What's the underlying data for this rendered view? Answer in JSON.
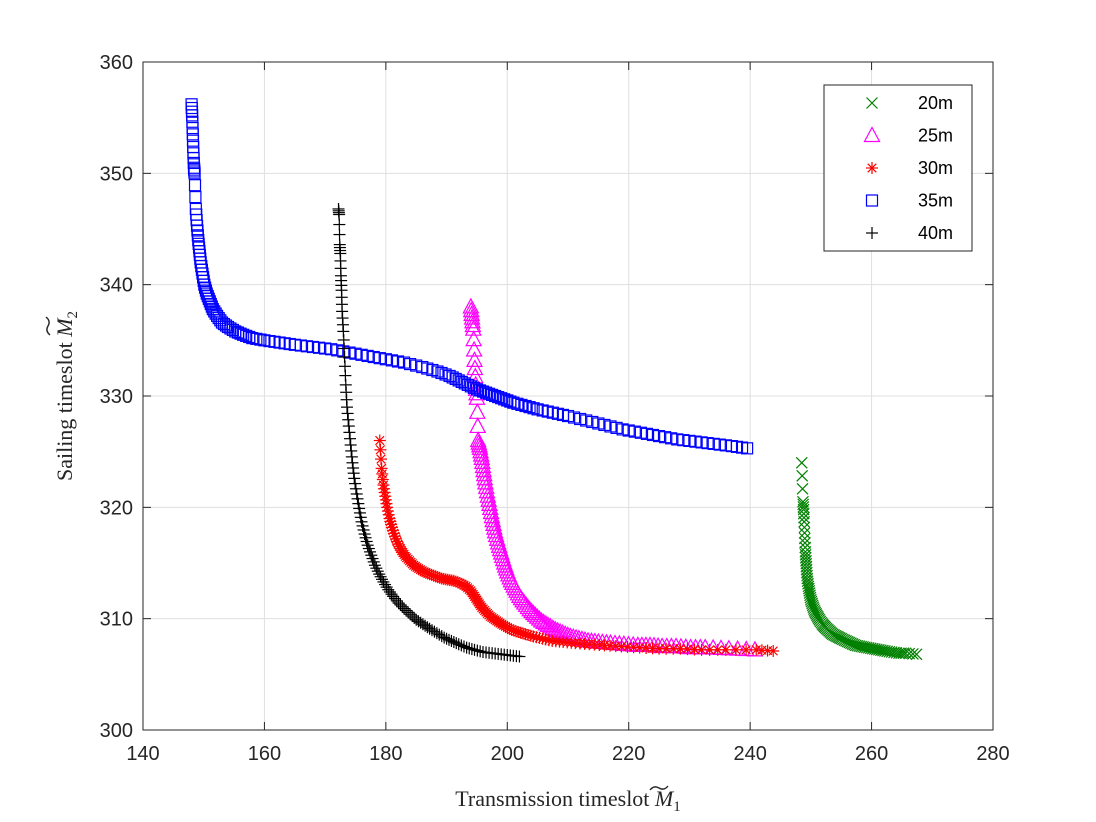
{
  "chart_data": {
    "type": "scatter",
    "xlabel": "Transmission timeslot",
    "xlabel_symbol": "M",
    "xlabel_sub": "1",
    "ylabel": "Sailing timeslot",
    "ylabel_symbol": "M",
    "ylabel_sub": "2",
    "xlim": [
      140,
      280
    ],
    "ylim": [
      300,
      360
    ],
    "xticks": [
      140,
      160,
      180,
      200,
      220,
      240,
      260,
      280
    ],
    "yticks": [
      300,
      310,
      320,
      330,
      340,
      350,
      360
    ],
    "grid": true,
    "legend_position": "top-right",
    "series": [
      {
        "name": "20m",
        "marker": "x",
        "color": "#008000",
        "x": [
          248.5,
          248.7,
          248.8,
          248.9,
          249.0,
          249.1,
          249.2,
          249.3,
          249.4,
          249.6,
          249.8,
          250.0,
          250.3,
          250.6,
          251.0,
          251.4,
          251.9,
          252.4,
          253.0,
          253.6,
          254.3,
          255.0,
          255.8,
          256.6,
          257.4,
          258.3,
          259.2,
          260.2,
          261.2,
          262.2,
          263.3,
          264.5,
          265.6,
          267.4
        ],
        "y": [
          324.0,
          320.5,
          319.8,
          318.7,
          317.2,
          316.0,
          315.2,
          314.4,
          313.6,
          312.9,
          312.3,
          311.7,
          311.2,
          310.7,
          310.3,
          309.9,
          309.5,
          309.2,
          308.9,
          308.6,
          308.4,
          308.2,
          308.0,
          307.8,
          307.6,
          307.5,
          307.4,
          307.3,
          307.2,
          307.1,
          307.0,
          306.9,
          306.9,
          306.8
        ]
      },
      {
        "name": "25m",
        "marker": "triangle",
        "color": "#ff00ff",
        "x": [
          194.0,
          194.2,
          194.4,
          194.6,
          194.8,
          195.0,
          195.2,
          195.5,
          195.8,
          196.1,
          196.4,
          196.8,
          197.2,
          197.6,
          198.0,
          198.5,
          199.0,
          199.5,
          200.0,
          200.6,
          201.3,
          202.0,
          202.8,
          203.7,
          204.6,
          205.6,
          206.7,
          207.9,
          209.1,
          210.4,
          211.8,
          213.3,
          215.0,
          217.0,
          219.2,
          221.5,
          223.5,
          225.5,
          227.8,
          230.2,
          232.6,
          236.5,
          240.8
        ],
        "y": [
          338.0,
          337.0,
          336.0,
          333.2,
          331.0,
          329.8,
          326.0,
          325.3,
          324.4,
          323.3,
          322.2,
          321.0,
          319.9,
          318.8,
          317.8,
          316.8,
          315.9,
          315.0,
          314.2,
          313.4,
          312.7,
          312.0,
          311.4,
          310.8,
          310.3,
          309.8,
          309.4,
          309.0,
          308.7,
          308.4,
          308.2,
          308.0,
          307.9,
          307.8,
          307.7,
          307.6,
          307.6,
          307.5,
          307.5,
          307.4,
          307.4,
          307.3,
          307.2
        ]
      },
      {
        "name": "30m",
        "marker": "asterisk",
        "color": "#ff0000",
        "x": [
          179.0,
          179.3,
          179.6,
          179.9,
          180.2,
          180.6,
          181.0,
          181.5,
          182.0,
          182.6,
          183.2,
          183.9,
          184.6,
          185.4,
          186.3,
          187.2,
          188.2,
          189.2,
          190.2,
          191.2,
          192.2,
          193.2,
          194.0,
          194.6,
          195.2,
          195.8,
          196.5,
          197.2,
          198.0,
          198.8,
          199.7,
          200.7,
          201.8,
          203.0,
          204.3,
          205.8,
          207.4,
          209.2,
          211.2,
          213.5,
          216.0,
          218.8,
          221.8,
          225.0,
          228.5,
          232.0,
          236.0,
          241.0,
          243.8
        ],
        "y": [
          326.0,
          323.5,
          322.0,
          321.0,
          320.0,
          319.0,
          318.2,
          317.4,
          316.7,
          316.1,
          315.6,
          315.2,
          314.8,
          314.5,
          314.2,
          314.0,
          313.8,
          313.6,
          313.5,
          313.4,
          313.2,
          312.9,
          312.5,
          312.0,
          311.5,
          311.0,
          310.6,
          310.2,
          309.9,
          309.6,
          309.3,
          309.0,
          308.8,
          308.6,
          308.4,
          308.2,
          308.0,
          307.9,
          307.8,
          307.7,
          307.6,
          307.5,
          307.4,
          307.3,
          307.3,
          307.2,
          307.2,
          307.2,
          307.1
        ]
      },
      {
        "name": "35m",
        "marker": "square",
        "color": "#0000ff",
        "x": [
          148.0,
          148.1,
          148.2,
          148.3,
          148.4,
          148.5,
          148.7,
          148.9,
          149.1,
          149.3,
          149.5,
          149.8,
          150.1,
          150.5,
          151.0,
          151.5,
          152.2,
          153.0,
          154.0,
          155.2,
          156.5,
          158.0,
          160.0,
          162.5,
          165.0,
          168.0,
          171.0,
          174.0,
          177.0,
          180.0,
          183.0,
          186.0,
          188.5,
          190.5,
          192.0,
          193.5,
          195.0,
          196.5,
          198.0,
          199.5,
          201.0,
          203.0,
          205.0,
          207.5,
          210.0,
          213.0,
          216.0,
          219.0,
          222.0,
          225.0,
          228.0,
          231.0,
          234.0,
          237.0,
          239.5
        ],
        "y": [
          356.2,
          355.2,
          353.5,
          351.8,
          350.5,
          350.0,
          346.8,
          345.3,
          344.0,
          343.0,
          342.0,
          341.0,
          340.0,
          339.2,
          338.5,
          337.8,
          337.2,
          336.6,
          336.2,
          335.8,
          335.5,
          335.2,
          335.0,
          334.8,
          334.6,
          334.4,
          334.2,
          333.9,
          333.6,
          333.3,
          333.0,
          332.6,
          332.2,
          331.8,
          331.4,
          331.0,
          330.6,
          330.3,
          330.0,
          329.7,
          329.4,
          329.1,
          328.8,
          328.5,
          328.2,
          327.8,
          327.4,
          327.0,
          326.7,
          326.4,
          326.1,
          325.9,
          325.7,
          325.5,
          325.3
        ]
      },
      {
        "name": "40m",
        "marker": "plus",
        "color": "#000000",
        "x": [
          172.2,
          172.3,
          172.4,
          172.5,
          172.6,
          172.7,
          172.8,
          173.0,
          173.2,
          173.4,
          173.6,
          173.9,
          174.2,
          174.5,
          174.8,
          175.2,
          175.6,
          176.0,
          176.5,
          177.0,
          177.6,
          178.2,
          178.9,
          179.6,
          180.4,
          181.2,
          182.1,
          183.0,
          184.0,
          185.0,
          186.1,
          187.2,
          188.4,
          189.6,
          190.8,
          192.0,
          193.3,
          194.6,
          196.0,
          197.5,
          199.0,
          200.5,
          202.0
        ],
        "y": [
          346.8,
          346.3,
          343.6,
          342.8,
          340.8,
          339.5,
          337.6,
          335.8,
          333.5,
          331.0,
          329.0,
          327.3,
          325.6,
          324.0,
          322.6,
          321.2,
          319.9,
          318.7,
          317.6,
          316.6,
          315.7,
          314.8,
          314.0,
          313.3,
          312.6,
          312.0,
          311.4,
          310.9,
          310.4,
          309.9,
          309.5,
          309.1,
          308.7,
          308.3,
          308.0,
          307.7,
          307.4,
          307.2,
          307.0,
          306.9,
          306.8,
          306.7,
          306.6
        ]
      }
    ]
  }
}
